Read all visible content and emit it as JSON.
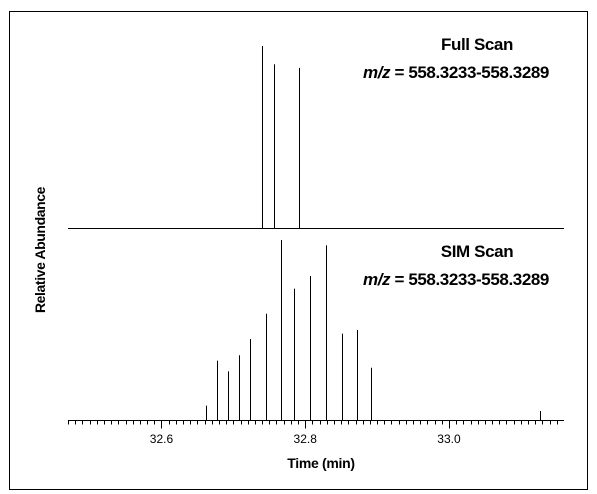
{
  "chart_data": {
    "type": "line",
    "ylabel": "Relative Abundance",
    "xlabel": "Time (min)",
    "xlim": [
      32.47,
      33.16
    ],
    "x_ticks": [
      32.6,
      32.8,
      33.0
    ],
    "x_tick_labels": [
      "32.6",
      "32.8",
      "33.0"
    ],
    "grid": false,
    "panels": [
      {
        "name": "full-scan",
        "title": "Full Scan",
        "subtitle_prefix": "m/z",
        "subtitle_suffix": " = 558.3233-558.3289",
        "ylim": [
          0,
          100
        ],
        "peaks": [
          {
            "x": 32.74,
            "y": 100
          },
          {
            "x": 32.757,
            "y": 90
          },
          {
            "x": 32.792,
            "y": 88
          }
        ]
      },
      {
        "name": "sim-scan",
        "title": "SIM Scan",
        "subtitle_prefix": "m/z",
        "subtitle_suffix": " = 558.3233-558.3289",
        "ylim": [
          0,
          100
        ],
        "peaks": [
          {
            "x": 32.662,
            "y": 8
          },
          {
            "x": 32.677,
            "y": 33
          },
          {
            "x": 32.692,
            "y": 27
          },
          {
            "x": 32.708,
            "y": 36
          },
          {
            "x": 32.723,
            "y": 45
          },
          {
            "x": 32.745,
            "y": 59
          },
          {
            "x": 32.767,
            "y": 100
          },
          {
            "x": 32.785,
            "y": 73
          },
          {
            "x": 32.807,
            "y": 80
          },
          {
            "x": 32.829,
            "y": 97
          },
          {
            "x": 32.851,
            "y": 48
          },
          {
            "x": 32.872,
            "y": 50
          },
          {
            "x": 32.891,
            "y": 29
          },
          {
            "x": 33.127,
            "y": 5
          }
        ]
      }
    ]
  }
}
